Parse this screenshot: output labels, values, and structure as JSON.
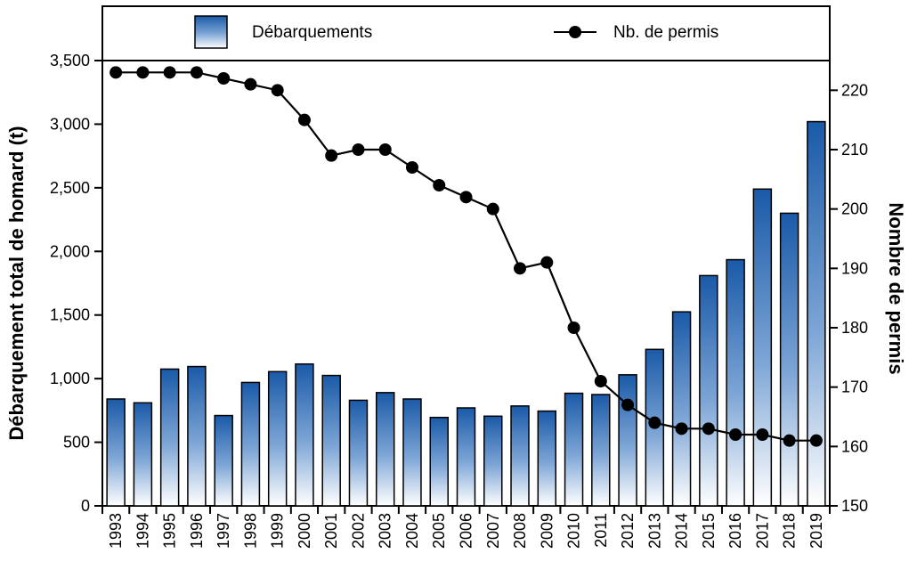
{
  "chart_data": {
    "type": "bar+line",
    "categories": [
      "1993",
      "1994",
      "1995",
      "1996",
      "1997",
      "1998",
      "1999",
      "2000",
      "2001",
      "2002",
      "2003",
      "2004",
      "2005",
      "2006",
      "2007",
      "2008",
      "2009",
      "2010",
      "2011",
      "2012",
      "2013",
      "2014",
      "2015",
      "2016",
      "2017",
      "2018",
      "2019"
    ],
    "series": [
      {
        "name": "Débarquements",
        "type": "bar",
        "axis": "left",
        "values": [
          840,
          810,
          1075,
          1095,
          710,
          970,
          1055,
          1115,
          1025,
          830,
          890,
          840,
          695,
          770,
          705,
          785,
          745,
          885,
          875,
          1030,
          1230,
          1525,
          1810,
          1935,
          2490,
          2300,
          3020
        ]
      },
      {
        "name": "Nb. de permis",
        "type": "line",
        "axis": "right",
        "values": [
          223,
          223,
          223,
          223,
          222,
          221,
          220,
          215,
          209,
          210,
          210,
          207,
          204,
          202,
          200,
          190,
          191,
          180,
          171,
          167,
          164,
          163,
          163,
          162,
          162,
          161,
          161
        ]
      }
    ],
    "ylabel_left": "Débarquement total de homard (t)",
    "ylabel_right": "Nombre de permis",
    "ylim_left": [
      0,
      3500
    ],
    "yticks_left": [
      "0",
      "500",
      "1,000",
      "1,500",
      "2,000",
      "2,500",
      "3,000",
      "3,500"
    ],
    "ylim_right": [
      150,
      225
    ],
    "yticks_right": [
      "150",
      "160",
      "170",
      "180",
      "190",
      "200",
      "210",
      "220"
    ],
    "legend_position": "top",
    "grid": false,
    "colors": {
      "bar_top": "#1a5aa8",
      "bar_bottom": "#ffffff",
      "line": "#000000",
      "marker": "#000000"
    }
  }
}
